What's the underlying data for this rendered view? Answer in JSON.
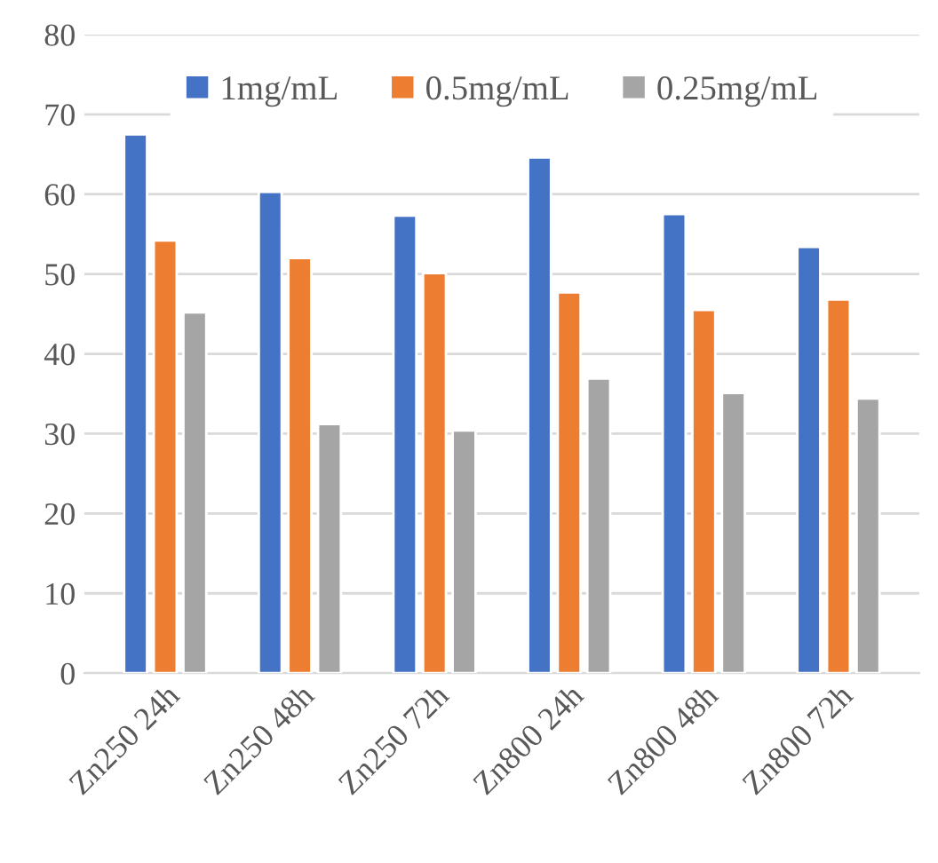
{
  "chart_data": {
    "type": "bar",
    "categories": [
      "Zn250 24h",
      "Zn250 48h",
      "Zn250 72h",
      "Zn800 24h",
      "Zn800 48h",
      "Zn800 72h"
    ],
    "series": [
      {
        "name": "1mg/mL",
        "color": "#4472c4",
        "values": [
          67.5,
          60.3,
          57.3,
          64.6,
          57.5,
          53.4
        ]
      },
      {
        "name": "0.5mg/mL",
        "color": "#ed7d31",
        "values": [
          54.2,
          52.0,
          50.1,
          47.7,
          45.5,
          46.8
        ]
      },
      {
        "name": "0.25mg/mL",
        "color": "#a5a5a5",
        "values": [
          45.2,
          31.2,
          30.4,
          36.9,
          35.1,
          34.4
        ]
      }
    ],
    "ylim": [
      0,
      80
    ],
    "yticks": [
      0,
      10,
      20,
      30,
      40,
      50,
      60,
      70,
      80
    ],
    "grid": "y",
    "legend": "top"
  }
}
